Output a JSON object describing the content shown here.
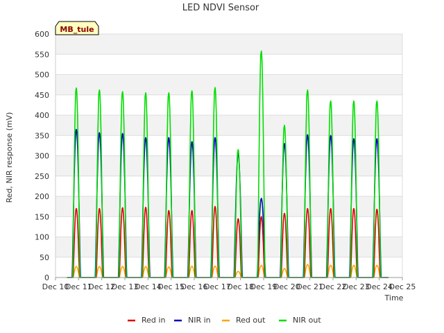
{
  "chart_data": {
    "type": "line",
    "title": "LED NDVI Sensor",
    "xlabel": "Time",
    "ylabel": "Red, NIR response (mV)",
    "badge": "MB_tule",
    "ylim": [
      0,
      600
    ],
    "yticks": [
      0,
      50,
      100,
      150,
      200,
      250,
      300,
      350,
      400,
      450,
      500,
      550,
      600
    ],
    "xlim": [
      10,
      25
    ],
    "xticks": [
      {
        "x": 10,
        "label": "Dec 10"
      },
      {
        "x": 11,
        "label": "Dec 11"
      },
      {
        "x": 12,
        "label": "Dec 12"
      },
      {
        "x": 13,
        "label": "Dec 13"
      },
      {
        "x": 14,
        "label": "Dec 14"
      },
      {
        "x": 15,
        "label": "Dec 15"
      },
      {
        "x": 16,
        "label": "Dec 16"
      },
      {
        "x": 17,
        "label": "Dec 17"
      },
      {
        "x": 18,
        "label": "Dec 18"
      },
      {
        "x": 19,
        "label": "Dec 19"
      },
      {
        "x": 20,
        "label": "Dec 20"
      },
      {
        "x": 21,
        "label": "Dec 21"
      },
      {
        "x": 22,
        "label": "Dec 22"
      },
      {
        "x": 23,
        "label": "Dec 23"
      },
      {
        "x": 24,
        "label": "Dec 24"
      },
      {
        "x": 25,
        "label": "Dec 25"
      }
    ],
    "grid": true,
    "legend_position": "bottom",
    "series": [
      {
        "name": "Red in",
        "color": "#dd0000"
      },
      {
        "name": "NIR in",
        "color": "#0000bb"
      },
      {
        "name": "Red out",
        "color": "#ffa500"
      },
      {
        "name": "NIR out",
        "color": "#00dd00"
      }
    ],
    "days": [
      {
        "center": 10.9,
        "red_in": 170,
        "nir_in": 365,
        "red_out": 27,
        "nir_out": 467
      },
      {
        "center": 11.9,
        "red_in": 170,
        "nir_in": 357,
        "red_out": 27,
        "nir_out": 462
      },
      {
        "center": 12.9,
        "red_in": 172,
        "nir_in": 355,
        "red_out": 27,
        "nir_out": 458
      },
      {
        "center": 13.9,
        "red_in": 173,
        "nir_in": 345,
        "red_out": 27,
        "nir_out": 455
      },
      {
        "center": 14.9,
        "red_in": 165,
        "nir_in": 345,
        "red_out": 26,
        "nir_out": 455
      },
      {
        "center": 15.9,
        "red_in": 165,
        "nir_in": 335,
        "red_out": 28,
        "nir_out": 460
      },
      {
        "center": 16.9,
        "red_in": 175,
        "nir_in": 345,
        "red_out": 28,
        "nir_out": 468
      },
      {
        "center": 17.9,
        "red_in": 145,
        "nir_in": 305,
        "red_out": 15,
        "nir_out": 315
      },
      {
        "center": 18.9,
        "red_in": 150,
        "nir_in": 195,
        "red_out": 30,
        "nir_out": 558
      },
      {
        "center": 19.9,
        "red_in": 158,
        "nir_in": 330,
        "red_out": 22,
        "nir_out": 375
      },
      {
        "center": 20.9,
        "red_in": 170,
        "nir_in": 352,
        "red_out": 32,
        "nir_out": 462
      },
      {
        "center": 21.9,
        "red_in": 170,
        "nir_in": 350,
        "red_out": 30,
        "nir_out": 435
      },
      {
        "center": 22.9,
        "red_in": 170,
        "nir_in": 342,
        "red_out": 30,
        "nir_out": 435
      },
      {
        "center": 23.9,
        "red_in": 168,
        "nir_in": 342,
        "red_out": 30,
        "nir_out": 435
      }
    ],
    "x_start": 10.5,
    "x_end": 24.4
  }
}
